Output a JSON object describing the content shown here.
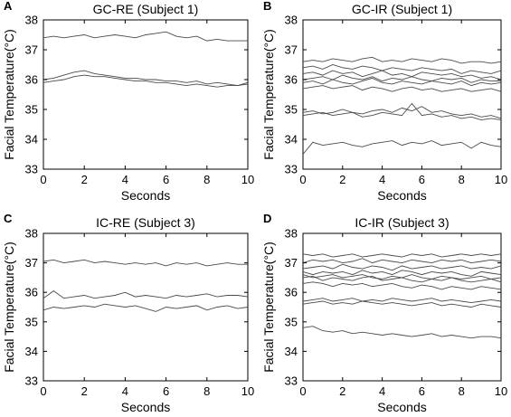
{
  "chart_data": [
    {
      "type": "line",
      "panel_label": "A",
      "title": "GC-RE (Subject 1)",
      "xlabel": "Seconds",
      "ylabel": "Facial Temperature(°C)",
      "xlim": [
        0,
        10
      ],
      "ylim": [
        33,
        38
      ],
      "xticks": [
        "0",
        "2",
        "4",
        "6",
        "8",
        "10"
      ],
      "yticks": [
        "33",
        "34",
        "35",
        "36",
        "37",
        "38"
      ],
      "x": [
        0,
        0.5,
        1,
        1.5,
        2,
        2.5,
        3,
        3.5,
        4,
        4.5,
        5,
        5.5,
        6,
        6.5,
        7,
        7.5,
        8,
        8.5,
        9,
        9.5,
        10
      ],
      "series": [
        {
          "values": [
            37.4,
            37.45,
            37.4,
            37.45,
            37.5,
            37.4,
            37.45,
            37.5,
            37.45,
            37.4,
            37.5,
            37.55,
            37.6,
            37.45,
            37.4,
            37.45,
            37.3,
            37.35,
            37.3,
            37.3,
            37.3
          ]
        },
        {
          "values": [
            36.0,
            36.05,
            36.15,
            36.25,
            36.3,
            36.2,
            36.15,
            36.1,
            36.05,
            36.05,
            36.0,
            36.0,
            35.95,
            35.95,
            35.9,
            35.95,
            35.85,
            35.9,
            35.85,
            35.8,
            35.9
          ]
        },
        {
          "values": [
            35.9,
            35.95,
            36.0,
            36.1,
            36.15,
            36.1,
            36.1,
            36.05,
            36.0,
            35.95,
            35.95,
            35.9,
            35.9,
            35.85,
            35.8,
            35.85,
            35.8,
            35.75,
            35.8,
            35.8,
            35.85
          ]
        }
      ]
    },
    {
      "type": "line",
      "panel_label": "B",
      "title": "GC-IR (Subject 1)",
      "xlabel": "Seconds",
      "ylabel": "Facial Temperature(°C)",
      "xlim": [
        0,
        10
      ],
      "ylim": [
        33,
        38
      ],
      "xticks": [
        "0",
        "2",
        "4",
        "6",
        "8",
        "10"
      ],
      "yticks": [
        "33",
        "34",
        "35",
        "36",
        "37",
        "38"
      ],
      "x": [
        0,
        0.5,
        1,
        1.5,
        2,
        2.5,
        3,
        3.5,
        4,
        4.5,
        5,
        5.5,
        6,
        6.5,
        7,
        7.5,
        8,
        8.5,
        9,
        9.5,
        10
      ],
      "series": [
        {
          "values": [
            36.6,
            36.65,
            36.6,
            36.7,
            36.65,
            36.6,
            36.7,
            36.75,
            36.6,
            36.65,
            36.6,
            36.7,
            36.65,
            36.6,
            36.7,
            36.65,
            36.55,
            36.6,
            36.6,
            36.55,
            36.6
          ]
        },
        {
          "values": [
            36.4,
            36.45,
            36.35,
            36.5,
            36.4,
            36.35,
            36.45,
            36.4,
            36.3,
            36.4,
            36.35,
            36.3,
            36.4,
            36.35,
            36.3,
            36.35,
            36.2,
            36.3,
            36.25,
            36.2,
            36.3
          ]
        },
        {
          "values": [
            36.2,
            36.25,
            36.15,
            36.3,
            36.2,
            36.25,
            36.1,
            36.2,
            36.3,
            36.15,
            36.2,
            36.1,
            36.25,
            36.2,
            36.15,
            36.2,
            36.1,
            36.15,
            36.05,
            36.1,
            36.0
          ]
        },
        {
          "values": [
            36.0,
            36.05,
            36.1,
            36.0,
            36.15,
            36.05,
            36.0,
            36.1,
            35.95,
            36.05,
            36.0,
            36.1,
            36.0,
            35.95,
            36.05,
            36.0,
            36.05,
            35.9,
            36.0,
            35.95,
            35.95
          ]
        },
        {
          "values": [
            35.9,
            35.95,
            35.85,
            36.0,
            35.9,
            35.85,
            35.95,
            36.05,
            35.9,
            35.85,
            35.95,
            35.9,
            35.85,
            35.95,
            35.9,
            35.85,
            35.95,
            35.8,
            35.9,
            35.85,
            35.9
          ]
        },
        {
          "values": [
            35.7,
            35.75,
            35.8,
            35.7,
            35.75,
            35.8,
            35.65,
            35.75,
            35.7,
            35.6,
            35.7,
            35.75,
            35.65,
            35.7,
            35.6,
            35.65,
            35.7,
            35.6,
            35.65,
            35.7,
            35.6
          ]
        },
        {
          "values": [
            34.9,
            34.95,
            34.85,
            34.9,
            35.0,
            34.9,
            34.85,
            34.95,
            35.0,
            34.9,
            35.05,
            34.95,
            35.1,
            34.9,
            34.95,
            34.85,
            34.8,
            34.85,
            34.75,
            34.8,
            34.7
          ]
        },
        {
          "values": [
            34.8,
            34.85,
            34.9,
            34.8,
            34.85,
            34.9,
            34.75,
            34.8,
            34.9,
            34.85,
            34.8,
            35.2,
            34.8,
            34.85,
            34.75,
            34.8,
            34.7,
            34.75,
            34.65,
            34.7,
            34.65
          ]
        },
        {
          "values": [
            33.5,
            33.9,
            33.8,
            33.85,
            33.9,
            33.8,
            33.75,
            33.85,
            33.9,
            33.95,
            33.8,
            33.9,
            33.85,
            33.95,
            33.8,
            33.85,
            33.9,
            33.7,
            33.9,
            33.8,
            33.75
          ]
        }
      ]
    },
    {
      "type": "line",
      "panel_label": "C",
      "title": "IC-RE (Subject 3)",
      "xlabel": "Seconds",
      "ylabel": "Facial Temperature(°C)",
      "xlim": [
        0,
        10
      ],
      "ylim": [
        33,
        38
      ],
      "xticks": [
        "0",
        "2",
        "4",
        "6",
        "8",
        "10"
      ],
      "yticks": [
        "33",
        "34",
        "35",
        "36",
        "37",
        "38"
      ],
      "x": [
        0,
        0.5,
        1,
        1.5,
        2,
        2.5,
        3,
        3.5,
        4,
        4.5,
        5,
        5.5,
        6,
        6.5,
        7,
        7.5,
        8,
        8.5,
        9,
        9.5,
        10
      ],
      "series": [
        {
          "values": [
            37.05,
            37.1,
            37.0,
            37.05,
            37.1,
            37.0,
            37.05,
            37.0,
            36.95,
            37.0,
            36.95,
            37.0,
            36.9,
            37.0,
            36.95,
            37.0,
            36.9,
            36.95,
            37.0,
            36.95,
            36.95
          ]
        },
        {
          "values": [
            35.8,
            36.05,
            35.8,
            35.85,
            35.9,
            35.8,
            35.85,
            35.9,
            36.0,
            35.85,
            35.9,
            35.85,
            35.8,
            35.9,
            35.85,
            35.9,
            35.95,
            35.85,
            35.9,
            35.9,
            35.85
          ]
        },
        {
          "values": [
            35.4,
            35.5,
            35.45,
            35.5,
            35.55,
            35.5,
            35.6,
            35.55,
            35.5,
            35.55,
            35.45,
            35.35,
            35.5,
            35.45,
            35.5,
            35.55,
            35.4,
            35.5,
            35.55,
            35.45,
            35.5
          ]
        }
      ]
    },
    {
      "type": "line",
      "panel_label": "D",
      "title": "IC-IR (Subject 3)",
      "xlabel": "Seconds",
      "ylabel": "Facial Temperature(°C)",
      "xlim": [
        0,
        10
      ],
      "ylim": [
        33,
        38
      ],
      "xticks": [
        "0",
        "2",
        "4",
        "6",
        "8",
        "10"
      ],
      "yticks": [
        "33",
        "34",
        "35",
        "36",
        "37",
        "38"
      ],
      "x": [
        0,
        0.5,
        1,
        1.5,
        2,
        2.5,
        3,
        3.5,
        4,
        4.5,
        5,
        5.5,
        6,
        6.5,
        7,
        7.5,
        8,
        8.5,
        9,
        9.5,
        10
      ],
      "series": [
        {
          "values": [
            37.3,
            37.25,
            37.3,
            37.2,
            37.25,
            37.3,
            37.2,
            37.25,
            37.3,
            37.25,
            37.2,
            37.3,
            37.25,
            37.3,
            37.2,
            37.25,
            37.3,
            37.25,
            37.3,
            37.25,
            37.3
          ]
        },
        {
          "values": [
            37.0,
            37.1,
            37.05,
            37.1,
            37.0,
            37.05,
            37.15,
            37.0,
            37.1,
            37.05,
            37.0,
            37.1,
            37.05,
            37.0,
            37.1,
            37.05,
            37.1,
            37.0,
            37.05,
            37.1,
            37.05
          ]
        },
        {
          "values": [
            36.8,
            36.85,
            36.9,
            36.8,
            36.95,
            36.85,
            36.8,
            36.9,
            36.85,
            36.75,
            36.9,
            36.8,
            36.85,
            36.9,
            36.8,
            36.85,
            36.9,
            36.8,
            36.85,
            36.8,
            36.9
          ]
        },
        {
          "values": [
            36.7,
            36.6,
            36.7,
            36.65,
            36.7,
            36.6,
            36.75,
            36.65,
            36.7,
            36.6,
            36.75,
            36.7,
            36.6,
            36.7,
            36.65,
            36.7,
            36.6,
            36.55,
            36.7,
            36.65,
            36.6
          ]
        },
        {
          "values": [
            36.6,
            36.5,
            36.55,
            36.6,
            36.5,
            36.55,
            36.6,
            36.5,
            36.45,
            36.55,
            36.5,
            36.6,
            36.5,
            36.45,
            36.55,
            36.5,
            36.45,
            36.5,
            36.55,
            36.45,
            36.5
          ]
        },
        {
          "values": [
            36.5,
            36.55,
            36.4,
            36.5,
            36.45,
            36.4,
            36.5,
            36.55,
            36.4,
            36.45,
            36.5,
            36.4,
            36.35,
            36.45,
            36.4,
            36.5,
            36.4,
            36.35,
            36.4,
            36.45,
            36.35
          ]
        },
        {
          "values": [
            36.3,
            36.35,
            36.3,
            36.2,
            36.3,
            36.25,
            36.3,
            36.2,
            36.25,
            36.3,
            36.2,
            36.15,
            36.25,
            36.2,
            36.1,
            36.2,
            36.15,
            36.1,
            36.2,
            36.15,
            36.1
          ]
        },
        {
          "values": [
            35.7,
            35.75,
            35.8,
            35.7,
            35.75,
            35.8,
            35.7,
            35.75,
            35.7,
            35.8,
            35.75,
            35.7,
            35.75,
            35.8,
            35.7,
            35.75,
            35.7,
            35.65,
            35.7,
            35.75,
            35.7
          ]
        },
        {
          "values": [
            35.6,
            35.65,
            35.7,
            35.6,
            35.65,
            35.6,
            35.7,
            35.65,
            35.6,
            35.65,
            35.6,
            35.55,
            35.6,
            35.65,
            35.55,
            35.6,
            35.55,
            35.5,
            35.6,
            35.55,
            35.5
          ]
        },
        {
          "values": [
            34.8,
            34.85,
            34.7,
            34.65,
            34.7,
            34.6,
            34.65,
            34.6,
            34.55,
            34.6,
            34.55,
            34.5,
            34.55,
            34.6,
            34.5,
            34.55,
            34.5,
            34.45,
            34.5,
            34.5,
            34.45
          ]
        }
      ]
    }
  ]
}
